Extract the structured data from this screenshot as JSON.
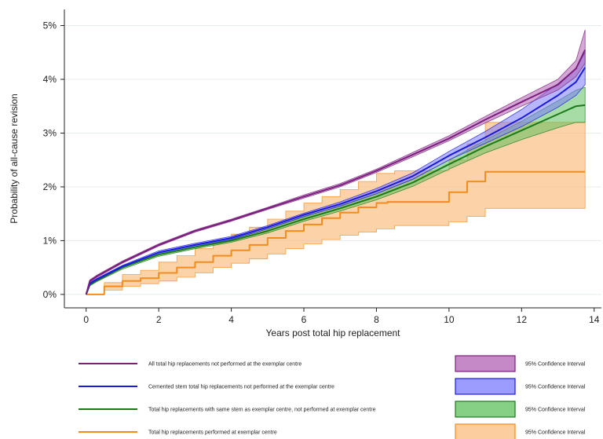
{
  "chart_data": {
    "type": "line",
    "title": "",
    "xlabel": "Years post total hip replacement",
    "ylabel": "Probability of all-cause revision",
    "xlim": [
      -0.6,
      14.2
    ],
    "ylim": [
      -0.25,
      5.3
    ],
    "x_ticks": [
      0,
      2,
      4,
      6,
      8,
      10,
      12,
      14
    ],
    "y_ticks": [
      0,
      1,
      2,
      3,
      4,
      5
    ],
    "y_tick_labels": [
      "0%",
      "1%",
      "2%",
      "3%",
      "4%",
      "5%"
    ],
    "grid": true,
    "legend_position": "bottom",
    "series": [
      {
        "name": "All total hip replacements not performed at the exemplar centre",
        "color": "#7b1f7e",
        "fill": "#b061b3",
        "ci_label": "95% Confidence Interval",
        "points": [
          [
            0,
            0
          ],
          [
            0.1,
            0.25
          ],
          [
            0.3,
            0.34
          ],
          [
            1,
            0.6
          ],
          [
            2,
            0.92
          ],
          [
            3,
            1.18
          ],
          [
            4,
            1.38
          ],
          [
            5,
            1.6
          ],
          [
            6,
            1.82
          ],
          [
            7,
            2.03
          ],
          [
            8,
            2.3
          ],
          [
            9,
            2.6
          ],
          [
            10,
            2.9
          ],
          [
            11,
            3.25
          ],
          [
            12,
            3.58
          ],
          [
            13,
            3.9
          ],
          [
            13.5,
            4.2
          ],
          [
            13.75,
            4.55
          ]
        ],
        "lower": [
          [
            0,
            0
          ],
          [
            0.1,
            0.23
          ],
          [
            0.3,
            0.32
          ],
          [
            1,
            0.58
          ],
          [
            2,
            0.9
          ],
          [
            3,
            1.16
          ],
          [
            4,
            1.36
          ],
          [
            5,
            1.58
          ],
          [
            6,
            1.79
          ],
          [
            7,
            2.0
          ],
          [
            8,
            2.27
          ],
          [
            9,
            2.56
          ],
          [
            10,
            2.86
          ],
          [
            11,
            3.19
          ],
          [
            12,
            3.5
          ],
          [
            13,
            3.8
          ],
          [
            13.5,
            4.05
          ],
          [
            13.75,
            4.3
          ]
        ],
        "upper": [
          [
            0,
            0
          ],
          [
            0.1,
            0.27
          ],
          [
            0.3,
            0.36
          ],
          [
            1,
            0.62
          ],
          [
            2,
            0.94
          ],
          [
            3,
            1.2
          ],
          [
            4,
            1.4
          ],
          [
            5,
            1.62
          ],
          [
            6,
            1.85
          ],
          [
            7,
            2.06
          ],
          [
            8,
            2.33
          ],
          [
            9,
            2.64
          ],
          [
            10,
            2.95
          ],
          [
            11,
            3.31
          ],
          [
            12,
            3.66
          ],
          [
            13,
            4.0
          ],
          [
            13.5,
            4.35
          ],
          [
            13.75,
            4.92
          ]
        ]
      },
      {
        "name": "Cemented stem total hip replacements not performed at the exemplar centre",
        "color": "#1a1adf",
        "fill": "#7b7bff",
        "ci_label": "95% Confidence Interval",
        "points": [
          [
            0,
            0
          ],
          [
            0.1,
            0.2
          ],
          [
            0.3,
            0.28
          ],
          [
            1,
            0.52
          ],
          [
            2,
            0.78
          ],
          [
            3,
            0.92
          ],
          [
            4,
            1.05
          ],
          [
            5,
            1.25
          ],
          [
            6,
            1.48
          ],
          [
            7,
            1.68
          ],
          [
            8,
            1.92
          ],
          [
            9,
            2.2
          ],
          [
            10,
            2.58
          ],
          [
            11,
            2.92
          ],
          [
            12,
            3.28
          ],
          [
            13,
            3.7
          ],
          [
            13.5,
            3.95
          ],
          [
            13.75,
            4.22
          ]
        ],
        "lower": [
          [
            0,
            0
          ],
          [
            0.1,
            0.18
          ],
          [
            0.3,
            0.26
          ],
          [
            1,
            0.5
          ],
          [
            2,
            0.75
          ],
          [
            3,
            0.89
          ],
          [
            4,
            1.02
          ],
          [
            5,
            1.22
          ],
          [
            6,
            1.45
          ],
          [
            7,
            1.64
          ],
          [
            8,
            1.87
          ],
          [
            9,
            2.14
          ],
          [
            10,
            2.5
          ],
          [
            11,
            2.81
          ],
          [
            12,
            3.12
          ],
          [
            13,
            3.48
          ],
          [
            13.5,
            3.7
          ],
          [
            13.75,
            3.9
          ]
        ],
        "upper": [
          [
            0,
            0
          ],
          [
            0.1,
            0.22
          ],
          [
            0.3,
            0.3
          ],
          [
            1,
            0.54
          ],
          [
            2,
            0.81
          ],
          [
            3,
            0.95
          ],
          [
            4,
            1.08
          ],
          [
            5,
            1.28
          ],
          [
            6,
            1.51
          ],
          [
            7,
            1.72
          ],
          [
            8,
            1.97
          ],
          [
            9,
            2.26
          ],
          [
            10,
            2.66
          ],
          [
            11,
            3.03
          ],
          [
            12,
            3.44
          ],
          [
            13,
            3.92
          ],
          [
            13.5,
            4.2
          ],
          [
            13.75,
            4.5
          ]
        ]
      },
      {
        "name": "Total hip replacements with same stem as exemplar centre, not performed at exemplar centre",
        "color": "#1a7a1a",
        "fill": "#5cc05c",
        "ci_label": "95% Confidence Interval",
        "points": [
          [
            0,
            0
          ],
          [
            0.1,
            0.18
          ],
          [
            0.3,
            0.26
          ],
          [
            1,
            0.5
          ],
          [
            2,
            0.74
          ],
          [
            3,
            0.88
          ],
          [
            4,
            1.0
          ],
          [
            5,
            1.18
          ],
          [
            6,
            1.4
          ],
          [
            7,
            1.6
          ],
          [
            8,
            1.82
          ],
          [
            9,
            2.08
          ],
          [
            10,
            2.42
          ],
          [
            11,
            2.75
          ],
          [
            12,
            3.05
          ],
          [
            13,
            3.35
          ],
          [
            13.5,
            3.5
          ],
          [
            13.75,
            3.52
          ]
        ],
        "lower": [
          [
            0,
            0
          ],
          [
            0.1,
            0.16
          ],
          [
            0.3,
            0.24
          ],
          [
            1,
            0.47
          ],
          [
            2,
            0.71
          ],
          [
            3,
            0.85
          ],
          [
            4,
            0.97
          ],
          [
            5,
            1.14
          ],
          [
            6,
            1.36
          ],
          [
            7,
            1.55
          ],
          [
            8,
            1.76
          ],
          [
            9,
            2.01
          ],
          [
            10,
            2.33
          ],
          [
            11,
            2.63
          ],
          [
            12,
            2.88
          ],
          [
            13,
            3.1
          ],
          [
            13.5,
            3.2
          ],
          [
            13.75,
            3.2
          ]
        ],
        "upper": [
          [
            0,
            0
          ],
          [
            0.1,
            0.2
          ],
          [
            0.3,
            0.28
          ],
          [
            1,
            0.53
          ],
          [
            2,
            0.77
          ],
          [
            3,
            0.91
          ],
          [
            4,
            1.03
          ],
          [
            5,
            1.22
          ],
          [
            6,
            1.44
          ],
          [
            7,
            1.65
          ],
          [
            8,
            1.88
          ],
          [
            9,
            2.15
          ],
          [
            10,
            2.5
          ],
          [
            11,
            2.87
          ],
          [
            12,
            3.22
          ],
          [
            13,
            3.6
          ],
          [
            13.5,
            3.8
          ],
          [
            13.75,
            3.85
          ]
        ]
      },
      {
        "name": "Total hip replacements performed at exemplar centre",
        "color": "#f28c1e",
        "fill": "#fbc48c",
        "ci_label": "95% Confidence Interval",
        "step": true,
        "points": [
          [
            0,
            0
          ],
          [
            0.5,
            0.15
          ],
          [
            1,
            0.25
          ],
          [
            1.5,
            0.3
          ],
          [
            2,
            0.4
          ],
          [
            2.5,
            0.5
          ],
          [
            3,
            0.6
          ],
          [
            3.5,
            0.72
          ],
          [
            4,
            0.82
          ],
          [
            4.5,
            0.92
          ],
          [
            5,
            1.05
          ],
          [
            5.5,
            1.18
          ],
          [
            6,
            1.3
          ],
          [
            6.5,
            1.42
          ],
          [
            7,
            1.52
          ],
          [
            7.5,
            1.62
          ],
          [
            8,
            1.7
          ],
          [
            8.3,
            1.72
          ],
          [
            10,
            1.9
          ],
          [
            10.5,
            2.1
          ],
          [
            11,
            2.28
          ],
          [
            13.75,
            2.28
          ]
        ],
        "lower": [
          [
            0,
            0
          ],
          [
            0.5,
            0.08
          ],
          [
            1,
            0.15
          ],
          [
            1.5,
            0.2
          ],
          [
            2,
            0.25
          ],
          [
            2.5,
            0.32
          ],
          [
            3,
            0.4
          ],
          [
            3.5,
            0.5
          ],
          [
            4,
            0.58
          ],
          [
            4.5,
            0.66
          ],
          [
            5,
            0.75
          ],
          [
            5.5,
            0.85
          ],
          [
            6,
            0.94
          ],
          [
            6.5,
            1.02
          ],
          [
            7,
            1.1
          ],
          [
            7.5,
            1.16
          ],
          [
            8,
            1.22
          ],
          [
            8.5,
            1.28
          ],
          [
            10,
            1.35
          ],
          [
            10.5,
            1.45
          ],
          [
            11,
            1.6
          ],
          [
            13.75,
            1.6
          ]
        ],
        "upper": [
          [
            0,
            0
          ],
          [
            0.5,
            0.22
          ],
          [
            1,
            0.37
          ],
          [
            1.5,
            0.45
          ],
          [
            2,
            0.6
          ],
          [
            2.5,
            0.72
          ],
          [
            3,
            0.85
          ],
          [
            3.5,
            1.0
          ],
          [
            4,
            1.12
          ],
          [
            4.5,
            1.25
          ],
          [
            5,
            1.4
          ],
          [
            5.5,
            1.55
          ],
          [
            6,
            1.7
          ],
          [
            6.5,
            1.82
          ],
          [
            7,
            1.95
          ],
          [
            7.5,
            2.1
          ],
          [
            8,
            2.25
          ],
          [
            8.5,
            2.3
          ],
          [
            10,
            2.5
          ],
          [
            10.5,
            2.8
          ],
          [
            11,
            3.2
          ],
          [
            13.75,
            3.2
          ]
        ]
      }
    ]
  }
}
